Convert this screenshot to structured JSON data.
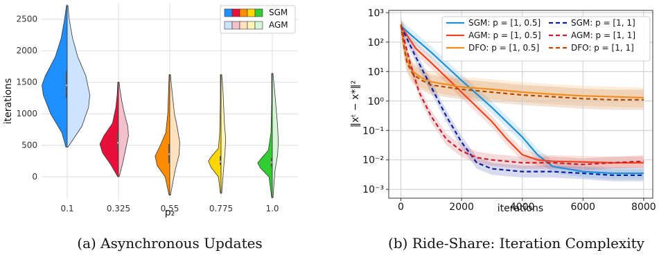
{
  "chart_data": [
    {
      "type": "violin",
      "caption": "(a) Asynchronous Updates",
      "xlabel": "p₂",
      "ylabel": "iterations",
      "categories": [
        "0.1",
        "0.325",
        "0.55",
        "0.775",
        "1.0"
      ],
      "yticks": [
        0,
        500,
        1000,
        1500,
        2000,
        2500
      ],
      "ylim": [
        -350,
        2750
      ],
      "grid": true,
      "legend": {
        "position": "top-right",
        "entries": [
          "SGM",
          "AGM"
        ]
      },
      "colors": {
        "SGM": [
          "#1f8fff",
          "#e8103a",
          "#ff8c00",
          "#ffd700",
          "#32cd32"
        ],
        "AGM": [
          "#cce4ff",
          "#f4c0cb",
          "#ffe1bf",
          "#fff4b8",
          "#d6f5d6"
        ]
      },
      "series": [
        {
          "name": "SGM",
          "violins": [
            {
              "min": 470,
              "max": 2720,
              "q1": 1250,
              "median": 1450,
              "q3": 1680,
              "profile": [
                [
                  470,
                  2
                ],
                [
                  700,
                  8
                ],
                [
                  1000,
                  25
                ],
                [
                  1300,
                  36
                ],
                [
                  1450,
                  38
                ],
                [
                  1600,
                  33
                ],
                [
                  1900,
                  18
                ],
                [
                  2200,
                  9
                ],
                [
                  2500,
                  4
                ],
                [
                  2720,
                  1
                ]
              ]
            },
            {
              "min": 0,
              "max": 1500,
              "q1": 420,
              "median": 540,
              "q3": 700,
              "profile": [
                [
                  0,
                  1
                ],
                [
                  200,
                  12
                ],
                [
                  380,
                  24
                ],
                [
                  520,
                  28
                ],
                [
                  650,
                  22
                ],
                [
                  850,
                  9
                ],
                [
                  1100,
                  4
                ],
                [
                  1300,
                  2
                ],
                [
                  1500,
                  1
                ]
              ]
            },
            {
              "min": -290,
              "max": 1620,
              "q1": 220,
              "median": 360,
              "q3": 520,
              "profile": [
                [
                  -290,
                  1
                ],
                [
                  0,
                  7
                ],
                [
                  180,
                  19
                ],
                [
                  330,
                  22
                ],
                [
                  480,
                  15
                ],
                [
                  700,
                  6
                ],
                [
                  1000,
                  3
                ],
                [
                  1300,
                  2
                ],
                [
                  1620,
                  1
                ]
              ]
            },
            {
              "min": -260,
              "max": 1620,
              "q1": 190,
              "median": 240,
              "q3": 330,
              "profile": [
                [
                  -260,
                  1
                ],
                [
                  0,
                  4
                ],
                [
                  150,
                  15
                ],
                [
                  250,
                  19
                ],
                [
                  340,
                  13
                ],
                [
                  450,
                  4
                ],
                [
                  700,
                  2
                ],
                [
                  1200,
                  1
                ],
                [
                  1620,
                  1
                ]
              ]
            },
            {
              "min": -330,
              "max": 1640,
              "q1": 160,
              "median": 230,
              "q3": 300,
              "profile": [
                [
                  -330,
                  1
                ],
                [
                  0,
                  5
                ],
                [
                  140,
                  18
                ],
                [
                  220,
                  22
                ],
                [
                  300,
                  16
                ],
                [
                  420,
                  6
                ],
                [
                  700,
                  2
                ],
                [
                  1200,
                  1
                ],
                [
                  1640,
                  1
                ]
              ]
            }
          ]
        },
        {
          "name": "AGM",
          "violins": [
            {
              "min": 470,
              "max": 2720,
              "profile": [
                [
                  470,
                  1
                ],
                [
                  800,
                  22
                ],
                [
                  1100,
                  32
                ],
                [
                  1300,
                  34
                ],
                [
                  1600,
                  28
                ],
                [
                  1900,
                  16
                ],
                [
                  2200,
                  8
                ],
                [
                  2500,
                  3
                ],
                [
                  2720,
                  1
                ]
              ]
            },
            {
              "min": 0,
              "max": 1500,
              "profile": [
                [
                  0,
                  1
                ],
                [
                  200,
                  6
                ],
                [
                  450,
                  11
                ],
                [
                  650,
                  15
                ],
                [
                  800,
                  14
                ],
                [
                  1000,
                  9
                ],
                [
                  1200,
                  5
                ],
                [
                  1400,
                  2
                ],
                [
                  1500,
                  1
                ]
              ]
            },
            {
              "min": -290,
              "max": 1620,
              "profile": [
                [
                  -290,
                  1
                ],
                [
                  100,
                  8
                ],
                [
                  350,
                  14
                ],
                [
                  550,
                  15
                ],
                [
                  800,
                  11
                ],
                [
                  1000,
                  7
                ],
                [
                  1300,
                  4
                ],
                [
                  1500,
                  2
                ],
                [
                  1620,
                  1
                ]
              ]
            },
            {
              "min": -260,
              "max": 1620,
              "profile": [
                [
                  -260,
                  1
                ],
                [
                  150,
                  4
                ],
                [
                  400,
                  6
                ],
                [
                  600,
                  7
                ],
                [
                  850,
                  5
                ],
                [
                  1100,
                  4
                ],
                [
                  1350,
                  3
                ],
                [
                  1620,
                  1
                ]
              ]
            },
            {
              "min": -330,
              "max": 1640,
              "profile": [
                [
                  -330,
                  1
                ],
                [
                  100,
                  4
                ],
                [
                  350,
                  8
                ],
                [
                  550,
                  9
                ],
                [
                  800,
                  8
                ],
                [
                  1050,
                  6
                ],
                [
                  1300,
                  4
                ],
                [
                  1640,
                  1
                ]
              ]
            }
          ]
        }
      ]
    },
    {
      "type": "line",
      "caption": "(b)  Ride-Share: Iteration Complexity",
      "xlabel": "iterations",
      "ylabel": "‖xᵗ − x*‖²",
      "xticks": [
        0,
        2000,
        4000,
        6000,
        8000
      ],
      "xlim": [
        -400,
        8300
      ],
      "yscale": "log",
      "yticks": [
        "10⁻³",
        "10⁻²",
        "10⁻¹",
        "10⁰",
        "10¹",
        "10²",
        "10³"
      ],
      "ylim": [
        0.0005,
        1200
      ],
      "grid": true,
      "legend": {
        "position": "top-right",
        "columns": 2
      },
      "series": [
        {
          "name": "SGM: p = [1, 0.5]",
          "color": "#1f8fd6",
          "dash": "solid",
          "x": [
            0,
            1000,
            2000,
            3000,
            4000,
            4500,
            5000,
            6000,
            7000,
            8000
          ],
          "y": [
            350,
            45,
            5,
            0.6,
            0.06,
            0.015,
            0.006,
            0.004,
            0.0035,
            0.0035
          ]
        },
        {
          "name": "AGM: p = [1, 0.5]",
          "color": "#ee4422",
          "dash": "solid",
          "x": [
            0,
            500,
            1000,
            2000,
            3000,
            3500,
            4000,
            4500,
            5000,
            6000,
            7000,
            8000
          ],
          "y": [
            350,
            60,
            20,
            2,
            0.2,
            0.05,
            0.015,
            0.01,
            0.009,
            0.0085,
            0.008,
            0.008
          ]
        },
        {
          "name": "DFO: p = [1, 0.5]",
          "color": "#f28c1c",
          "dash": "solid",
          "x": [
            0,
            100,
            200,
            400,
            700,
            1000,
            2000,
            3000,
            4000,
            5000,
            6000,
            7000,
            8000
          ],
          "y": [
            400,
            80,
            25,
            10,
            6,
            4.5,
            3,
            2.5,
            2,
            1.7,
            1.5,
            1.4,
            1.3
          ]
        },
        {
          "name": "SGM: p = [1, 1]",
          "color": "#0a1e9e",
          "dash": "dashed",
          "x": [
            0,
            500,
            1000,
            1500,
            2000,
            2500,
            3000,
            4000,
            5000,
            6000,
            7000,
            8000
          ],
          "y": [
            350,
            30,
            3,
            0.3,
            0.04,
            0.008,
            0.005,
            0.004,
            0.004,
            0.0035,
            0.003,
            0.003
          ]
        },
        {
          "name": "AGM: p = [1, 1]",
          "color": "#c81e2e",
          "dash": "dashed",
          "x": [
            0,
            300,
            600,
            1000,
            1500,
            2000,
            2500,
            3000,
            4000,
            5000,
            6000,
            7000,
            8000
          ],
          "y": [
            350,
            20,
            2,
            0.3,
            0.05,
            0.02,
            0.012,
            0.01,
            0.008,
            0.008,
            0.007,
            0.008,
            0.009
          ]
        },
        {
          "name": "DFO: p = [1, 1]",
          "color": "#b34a00",
          "dash": "dashed",
          "x": [
            0,
            100,
            200,
            400,
            700,
            1000,
            2000,
            3000,
            4000,
            5000,
            6000,
            7000,
            8000
          ],
          "y": [
            400,
            70,
            20,
            8,
            5,
            3.5,
            2.5,
            2,
            1.6,
            1.4,
            1.2,
            1.1,
            1.1
          ]
        }
      ]
    }
  ]
}
